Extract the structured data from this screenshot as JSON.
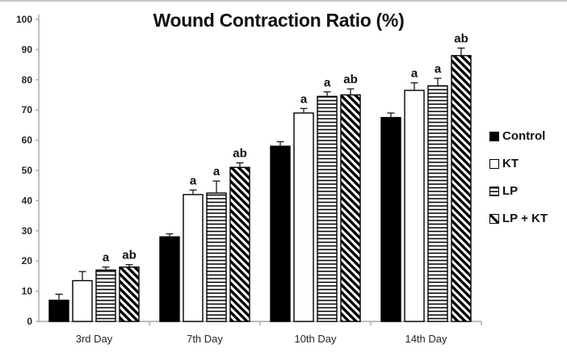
{
  "chart_data": {
    "type": "bar",
    "title": "Wound Contraction Ratio (%)",
    "xlabel": "",
    "ylabel": "",
    "categories": [
      "3rd Day",
      "7th Day",
      "10th Day",
      "14th Day"
    ],
    "series": [
      {
        "name": "Control",
        "pattern": "solid-black",
        "values": [
          7,
          28,
          58,
          67.5
        ],
        "errors": [
          2,
          1,
          1.5,
          1.5
        ],
        "annotations": [
          "",
          "",
          "",
          ""
        ]
      },
      {
        "name": "KT",
        "pattern": "open-white",
        "values": [
          13.5,
          42,
          69,
          76.5
        ],
        "errors": [
          3,
          1.5,
          1.5,
          2.5
        ],
        "annotations": [
          "",
          "a",
          "a",
          "a"
        ]
      },
      {
        "name": "LP",
        "pattern": "horizontal-stripes",
        "values": [
          17,
          42.5,
          74.5,
          78
        ],
        "errors": [
          1,
          4,
          1.5,
          2.5
        ],
        "annotations": [
          "a",
          "a",
          "a",
          "a"
        ]
      },
      {
        "name": "LP + KT",
        "pattern": "diagonal-stripes",
        "values": [
          18,
          51,
          75,
          88
        ],
        "errors": [
          0.8,
          1.5,
          2,
          2.5
        ],
        "annotations": [
          "ab",
          "ab",
          "ab",
          "ab"
        ]
      }
    ],
    "ylim": [
      0,
      100
    ],
    "yticks": [
      0,
      10,
      20,
      30,
      40,
      50,
      60,
      70,
      80,
      90,
      100
    ],
    "grid": false,
    "legend_position": "right",
    "colors": {
      "bar_fill": "#000000",
      "bar_outline": "#000000",
      "axis": "#a6a6a6",
      "tick_label": "#262626",
      "annotation": "#111111",
      "background": "#ffffff"
    }
  }
}
